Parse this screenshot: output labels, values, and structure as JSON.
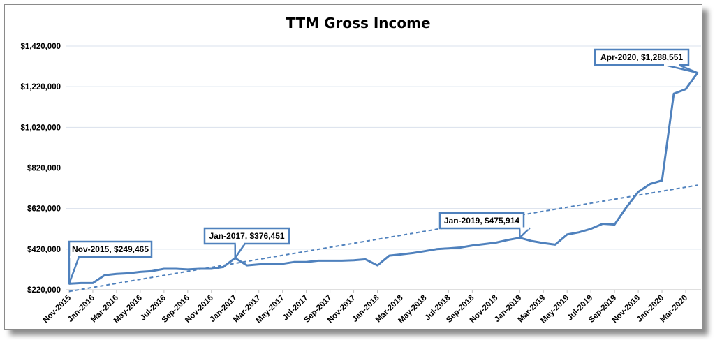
{
  "chart_data": {
    "type": "line",
    "title": "TTM Gross Income",
    "xlabel": "",
    "ylabel": "",
    "ylim": [
      220000,
      1420000
    ],
    "y_ticks": [
      "$220,000",
      "$420,000",
      "$620,000",
      "$820,000",
      "$1,020,000",
      "$1,220,000",
      "$1,420,000"
    ],
    "x_tick_labels": [
      "Nov-2015",
      "Jan-2016",
      "Mar-2016",
      "May-2016",
      "Jul-2016",
      "Sep-2016",
      "Nov-2016",
      "Jan-2017",
      "Mar-2017",
      "May-2017",
      "Jul-2017",
      "Sep-2017",
      "Nov-2017",
      "Jan-2018",
      "Mar-2018",
      "May-2018",
      "Jul-2018",
      "Sep-2018",
      "Nov-2018",
      "Jan-2019",
      "Mar-2019",
      "May-2019",
      "Jul-2019",
      "Sep-2019",
      "Nov-2019",
      "Jan-2020",
      "Mar-2020"
    ],
    "grid": true,
    "legend": "none",
    "colors": {
      "line": "#4f81bd",
      "trend": "#4f81bd",
      "grid": "#d9e1ec",
      "box_border": "#4f81bd"
    },
    "series": [
      {
        "x": [
          "Nov-2015",
          "Dec-2015",
          "Jan-2016",
          "Feb-2016",
          "Mar-2016",
          "Apr-2016",
          "May-2016",
          "Jun-2016",
          "Jul-2016",
          "Aug-2016",
          "Sep-2016",
          "Oct-2016",
          "Nov-2016",
          "Dec-2016",
          "Jan-2017",
          "Feb-2017",
          "Mar-2017",
          "Apr-2017",
          "May-2017",
          "Jun-2017",
          "Jul-2017",
          "Aug-2017",
          "Sep-2017",
          "Oct-2017",
          "Nov-2017",
          "Dec-2017",
          "Jan-2018",
          "Feb-2018",
          "Mar-2018",
          "Apr-2018",
          "May-2018",
          "Jun-2018",
          "Jul-2018",
          "Aug-2018",
          "Sep-2018",
          "Oct-2018",
          "Nov-2018",
          "Dec-2018",
          "Jan-2019",
          "Feb-2019",
          "Mar-2019",
          "Apr-2019",
          "May-2019",
          "Jun-2019",
          "Jul-2019",
          "Aug-2019",
          "Sep-2019",
          "Oct-2019",
          "Nov-2019",
          "Dec-2019",
          "Jan-2020",
          "Feb-2020",
          "Mar-2020",
          "Apr-2020"
        ],
        "values": [
          249465,
          253000,
          253000,
          292000,
          298000,
          301000,
          308000,
          312000,
          323000,
          323000,
          320000,
          323000,
          323000,
          332000,
          376451,
          340000,
          345000,
          348000,
          348000,
          357000,
          357000,
          363000,
          363000,
          363000,
          365000,
          370000,
          340000,
          388000,
          394000,
          401000,
          410000,
          420000,
          424000,
          428000,
          438000,
          445000,
          452000,
          465000,
          475914,
          460000,
          450000,
          442000,
          492000,
          503000,
          520000,
          545000,
          541000,
          626000,
          702000,
          741000,
          758000,
          1186000,
          1208000,
          1288551
        ]
      },
      {
        "name": "trend",
        "style": "dashed",
        "x": [
          "Nov-2015",
          "Apr-2020"
        ],
        "values": [
          212000,
          735000
        ]
      }
    ],
    "annotations": [
      {
        "text": "Nov-2015, $249,465",
        "x": "Nov-2015",
        "y": 249465
      },
      {
        "text": "Jan-2017, $376,451",
        "x": "Jan-2017",
        "y": 376451
      },
      {
        "text": "Jan-2019, $475,914",
        "x": "Jan-2019",
        "y": 475914
      },
      {
        "text": "Apr-2020, $1,288,551",
        "x": "Apr-2020",
        "y": 1288551
      }
    ]
  }
}
